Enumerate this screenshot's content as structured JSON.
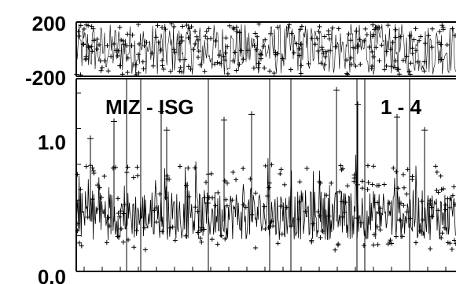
{
  "chart_data": [
    {
      "type": "scatter",
      "panel": "top",
      "ylim": [
        -200,
        200
      ],
      "ytick_labels": [
        "200",
        "-200"
      ],
      "title": "",
      "xlabel": "",
      "ylabel": "",
      "grid": false,
      "description_of_series": "dense noisy series filling the full vertical range"
    },
    {
      "type": "scatter",
      "panel": "bottom",
      "ylim": [
        0.0,
        1.35
      ],
      "ytick_labels": [
        "1.0",
        "0.0"
      ],
      "annotations": [
        "MIZ - ISG",
        "1 - 4"
      ],
      "title": "",
      "xlabel": "",
      "ylabel": "",
      "grid": false,
      "peaks": [
        0.93,
        1.05,
        1.12,
        0.99,
        1.06,
        1.1,
        1.27,
        1.17,
        1.08,
        0.99
      ]
    }
  ],
  "colors": {
    "ink": "#000000",
    "background": "#ffffff"
  }
}
